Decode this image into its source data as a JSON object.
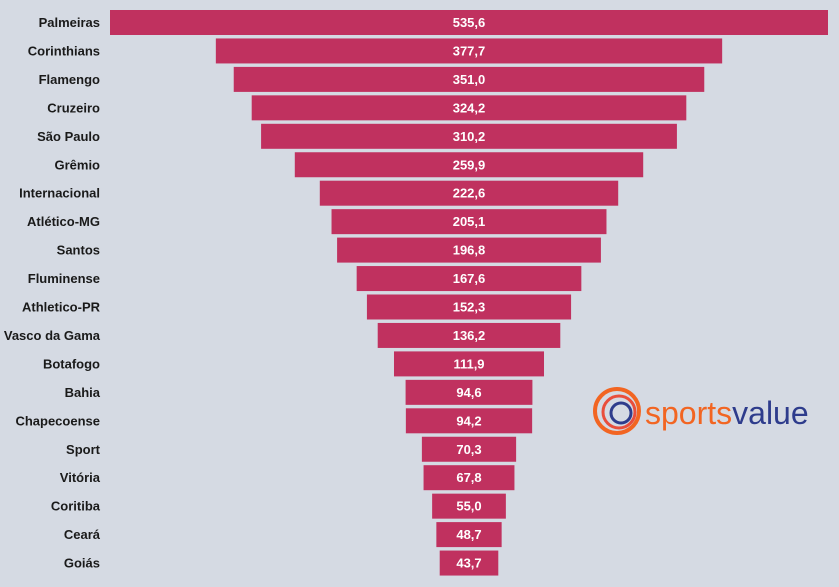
{
  "chart_data": {
    "type": "bar",
    "orientation": "horizontal-centered",
    "categories": [
      "Palmeiras",
      "Corinthians",
      "Flamengo",
      "Cruzeiro",
      "São Paulo",
      "Grêmio",
      "Internacional",
      "Atlético-MG",
      "Santos",
      "Fluminense",
      "Athletico-PR",
      "Vasco da Gama",
      "Botafogo",
      "Bahia",
      "Chapecoense",
      "Sport",
      "Vitória",
      "Coritiba",
      "Ceará",
      "Goiás"
    ],
    "values": [
      535.6,
      377.7,
      351.0,
      324.2,
      310.2,
      259.9,
      222.6,
      205.1,
      196.8,
      167.6,
      152.3,
      136.2,
      111.9,
      94.6,
      94.2,
      70.3,
      67.8,
      55.0,
      48.7,
      43.7
    ],
    "value_labels": [
      "535,6",
      "377,7",
      "351,0",
      "324,2",
      "310,2",
      "259,9",
      "222,6",
      "205,1",
      "196,8",
      "167,6",
      "152,3",
      "136,2",
      "111,9",
      "94,6",
      "94,2",
      "70,3",
      "67,8",
      "55,0",
      "48,7",
      "43,7"
    ],
    "title": "",
    "xlabel": "",
    "ylabel": "",
    "grid": false,
    "bar_color": "#c0315f",
    "background": "#d5dae3"
  },
  "logo": {
    "text_a": "sports",
    "text_b": "value",
    "color_a": "#f26522",
    "color_b": "#2e3c8c"
  }
}
